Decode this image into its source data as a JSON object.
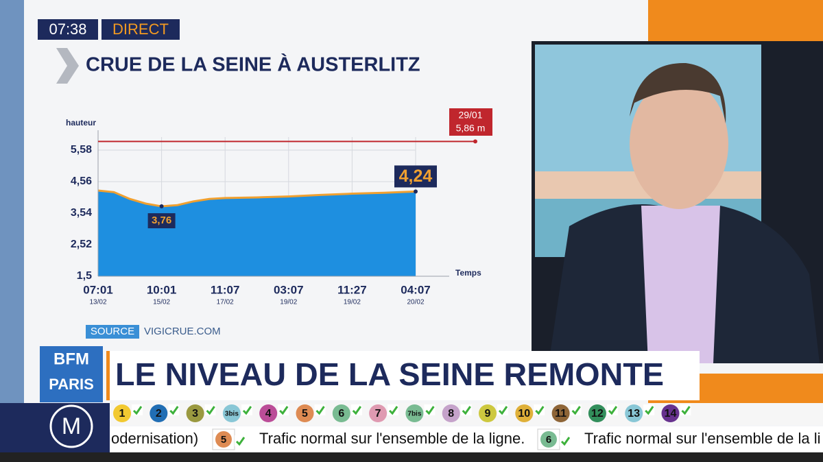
{
  "broadcast": {
    "clock": "07:38",
    "status": "DIRECT",
    "headline": "LE NIVEAU DE LA SEINE REMONTE",
    "logo": [
      "BFM",
      "PARIS"
    ],
    "source_label": "SOURCE",
    "source": "VIGICRUE.COM"
  },
  "chart_data": {
    "type": "area",
    "title": "CRUE DE LA SEINE À AUSTERLITZ",
    "y_label": "hauteur",
    "x_label": "Temps",
    "x": [
      0,
      0.25,
      0.5,
      0.75,
      1,
      1.25,
      1.5,
      1.75,
      2,
      2.5,
      3,
      3.5,
      4,
      4.5,
      5
    ],
    "values": [
      4.27,
      4.22,
      4.0,
      3.85,
      3.76,
      3.8,
      3.92,
      4.0,
      4.03,
      4.05,
      4.08,
      4.13,
      4.17,
      4.2,
      4.24
    ],
    "color": "#1e8fe0",
    "line_color": "#f0a030",
    "xlim": [
      0,
      5
    ],
    "ylim": [
      1.5,
      6.0
    ],
    "yticks": [
      {
        "value": 1.5,
        "label": "1,5"
      },
      {
        "value": 2.52,
        "label": "2,52"
      },
      {
        "value": 3.54,
        "label": "3,54"
      },
      {
        "value": 4.56,
        "label": "4,56"
      },
      {
        "value": 5.58,
        "label": "5,58"
      }
    ],
    "xticks": [
      {
        "value": 0,
        "label": "07:01"
      },
      {
        "value": 1,
        "label": "10:01"
      },
      {
        "value": 2,
        "label": "11:07"
      },
      {
        "value": 3,
        "label": "03:07"
      },
      {
        "value": 4,
        "label": "11:27"
      },
      {
        "value": 5,
        "label": "04:07"
      }
    ],
    "xtick_dates": [
      "13/02",
      "15/02",
      "17/02",
      "19/02",
      "19/02",
      "20/02"
    ],
    "grid": true,
    "annotations": [
      {
        "x": 1,
        "y": 3.76,
        "label": "3,76"
      },
      {
        "x": 5,
        "y": 4.24,
        "label": "4,24"
      }
    ],
    "reference": {
      "value": 5.86,
      "date": "29/01",
      "label": "5,86 m",
      "color": "#c0262d"
    }
  },
  "metro": {
    "logo": "M",
    "lines": [
      {
        "label": "1",
        "color": "#f2c931"
      },
      {
        "label": "2",
        "color": "#216eb4"
      },
      {
        "label": "3",
        "color": "#9a9940"
      },
      {
        "label": "3bis",
        "color": "#89c7d6"
      },
      {
        "label": "4",
        "color": "#bb4d98"
      },
      {
        "label": "5",
        "color": "#de8b53"
      },
      {
        "label": "6",
        "color": "#79bb92"
      },
      {
        "label": "7",
        "color": "#df9ab1"
      },
      {
        "label": "7bis",
        "color": "#79bb92"
      },
      {
        "label": "8",
        "color": "#c5a3ca"
      },
      {
        "label": "9",
        "color": "#cdc83f"
      },
      {
        "label": "10",
        "color": "#dfb039"
      },
      {
        "label": "11",
        "color": "#8e6538"
      },
      {
        "label": "12",
        "color": "#328e5b"
      },
      {
        "label": "13",
        "color": "#89c7d6"
      },
      {
        "label": "14",
        "color": "#67328e"
      }
    ],
    "ticker": [
      {
        "text": "odernisation)"
      },
      {
        "line": "5",
        "color": "#de8b53",
        "text": "Trafic normal sur l'ensemble de la ligne."
      },
      {
        "line": "6",
        "color": "#79bb92",
        "text": "Trafic normal sur l'ensemble de la li"
      }
    ]
  }
}
